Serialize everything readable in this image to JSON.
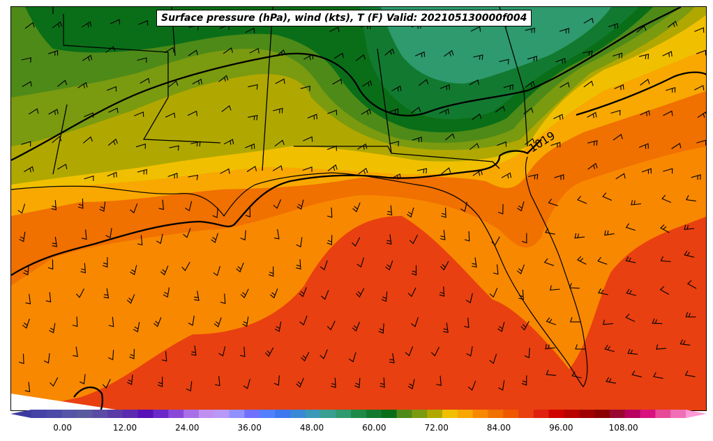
{
  "title": "Surface pressure (hPa), wind (kts), T (F) Valid: 202105130000f004",
  "isobar_labels": [
    {
      "text": "1019"
    }
  ],
  "colorbar": {
    "min": -6,
    "max": 120,
    "step": 2,
    "ticks": [
      "0.00",
      "12.00",
      "24.00",
      "36.00",
      "48.00",
      "60.00",
      "72.00",
      "84.00",
      "96.00",
      "108.00"
    ],
    "tick_values": [
      0,
      12,
      24,
      36,
      48,
      60,
      72,
      84,
      96,
      108
    ],
    "under_color": "#3b3ba0",
    "over_color": "#ff99d8",
    "colors": [
      "#4444a8",
      "#4a4aa8",
      "#5555a8",
      "#5a5a9e",
      "#5c4ba5",
      "#5b3aa8",
      "#5a2ab0",
      "#5810b8",
      "#6a28c8",
      "#8a48d8",
      "#a870e8",
      "#c090f0",
      "#b898f8",
      "#9090ff",
      "#7070ff",
      "#5080ff",
      "#3d78f0",
      "#3a88d8",
      "#3a98b8",
      "#38a090",
      "#2e9a6e",
      "#1e8a48",
      "#127a30",
      "#0a6e18",
      "#4e8a18",
      "#7a9a10",
      "#b0a800",
      "#f0c000",
      "#f8a800",
      "#f88800",
      "#f07000",
      "#f05800",
      "#e84010",
      "#e02010",
      "#d00000",
      "#b80000",
      "#a00000",
      "#8a0000",
      "#9a0830",
      "#b80060",
      "#d81080",
      "#e84898",
      "#f070b8"
    ]
  },
  "colors": {
    "cold_green": "#0a6e18",
    "mid_green": "#2e9a6e",
    "olive": "#b0a800",
    "yellow": "#f0c000",
    "orange": "#f88800",
    "red_orange": "#e84010"
  }
}
